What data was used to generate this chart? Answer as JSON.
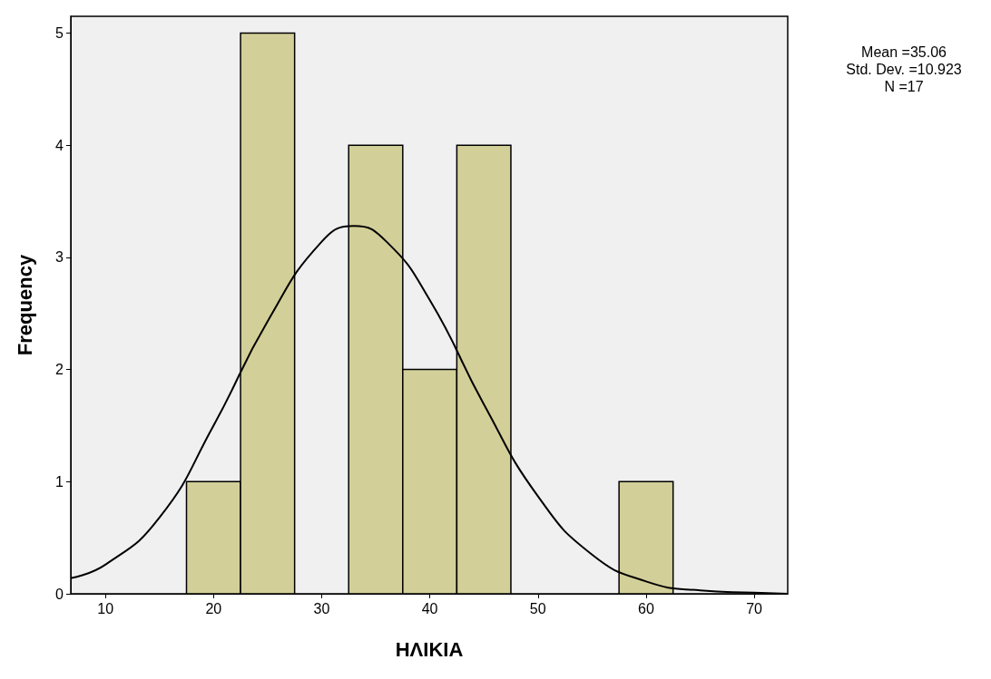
{
  "chart_data": {
    "type": "histogram",
    "xlabel": "ΗΛΙΚΙΑ",
    "ylabel": "Frequency",
    "bins": [
      17.5,
      22.5,
      27.5,
      32.5,
      37.5,
      42.5,
      47.5,
      52.5,
      57.5,
      62.5
    ],
    "values": [
      1,
      5,
      0,
      4,
      2,
      4,
      0,
      0,
      1
    ],
    "color": "#d3cf99",
    "series": [
      {
        "type": "line",
        "color": "#000000",
        "x": [
          6.8,
          10,
          15,
          20,
          25,
          30,
          33,
          36,
          40,
          45,
          50,
          55,
          60,
          65,
          70,
          73.1
        ],
        "values": [
          0.14,
          0.26,
          0.68,
          1.5,
          2.43,
          3.14,
          3.28,
          3.14,
          2.62,
          1.69,
          0.87,
          0.35,
          0.11,
          0.03,
          0.01,
          0
        ]
      }
    ],
    "marker": "none",
    "line_style": "solid",
    "xlim": [
      6.8,
      73.1
    ],
    "xticks": [
      10,
      20,
      30,
      40,
      50,
      60,
      70
    ],
    "ylim": [
      0,
      5.15
    ],
    "yticks": [
      0,
      1,
      2,
      3,
      4,
      5
    ],
    "grid": false,
    "annotations": [
      "Mean =35.06",
      "Std. Dev. =10.923",
      "N =17"
    ]
  }
}
